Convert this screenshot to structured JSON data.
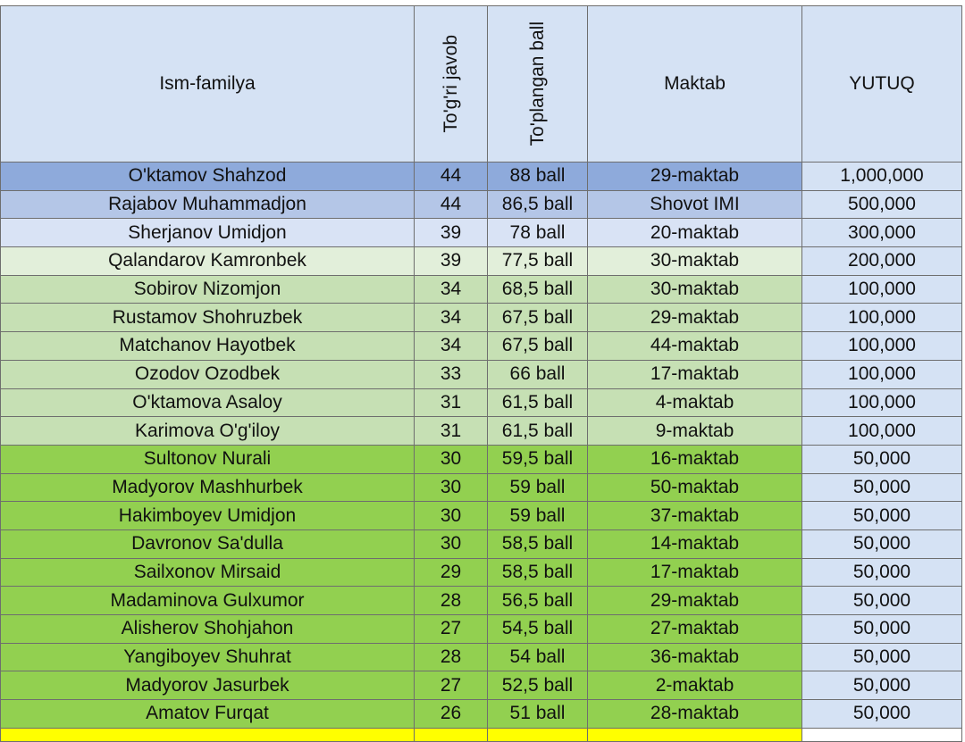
{
  "table": {
    "headers": {
      "name": "Ism-familya",
      "correct": "To'g'ri javob",
      "score": "To'plangan ball",
      "school": "Maktab",
      "prize": "YUTUQ"
    },
    "rows": [
      {
        "name": "O'ktamov Shahzod",
        "correct": "44",
        "score": "88 ball",
        "school": "29-maktab",
        "prize": "1,000,000",
        "color": "#8eaadb"
      },
      {
        "name": "Rajabov Muhammadjon",
        "correct": "44",
        "score": "86,5 ball",
        "school": "Shovot IMI",
        "prize": "500,000",
        "color": "#b4c6e7"
      },
      {
        "name": "Sherjanov Umidjon",
        "correct": "39",
        "score": "78 ball",
        "school": "20-maktab",
        "prize": "300,000",
        "color": "#d9e3f5"
      },
      {
        "name": "Qalandarov Kamronbek",
        "correct": "39",
        "score": "77,5 ball",
        "school": "30-maktab",
        "prize": "200,000",
        "color": "#e2efda"
      },
      {
        "name": "Sobirov Nizomjon",
        "correct": "34",
        "score": "68,5 ball",
        "school": "30-maktab",
        "prize": "100,000",
        "color": "#c6e0b4"
      },
      {
        "name": "Rustamov Shohruzbek",
        "correct": "34",
        "score": "67,5 ball",
        "school": "29-maktab",
        "prize": "100,000",
        "color": "#c6e0b4"
      },
      {
        "name": "Matchanov Hayotbek",
        "correct": "34",
        "score": "67,5 ball",
        "school": "44-maktab",
        "prize": "100,000",
        "color": "#c6e0b4"
      },
      {
        "name": "Ozodov Ozodbek",
        "correct": "33",
        "score": "66 ball",
        "school": "17-maktab",
        "prize": "100,000",
        "color": "#c6e0b4"
      },
      {
        "name": "O'ktamova Asaloy",
        "correct": "31",
        "score": "61,5 ball",
        "school": "4-maktab",
        "prize": "100,000",
        "color": "#c6e0b4"
      },
      {
        "name": "Karimova O'g'iloy",
        "correct": "31",
        "score": "61,5 ball",
        "school": "9-maktab",
        "prize": "100,000",
        "color": "#c6e0b4"
      },
      {
        "name": "Sultonov Nurali",
        "correct": "30",
        "score": "59,5 ball",
        "school": "16-maktab",
        "prize": "50,000",
        "color": "#92d050"
      },
      {
        "name": "Madyorov Mashhurbek",
        "correct": "30",
        "score": "59 ball",
        "school": "50-maktab",
        "prize": "50,000",
        "color": "#92d050"
      },
      {
        "name": "Hakimboyev Umidjon",
        "correct": "30",
        "score": "59 ball",
        "school": "37-maktab",
        "prize": "50,000",
        "color": "#92d050"
      },
      {
        "name": "Davronov Sa'dulla",
        "correct": "30",
        "score": "58,5 ball",
        "school": "14-maktab",
        "prize": "50,000",
        "color": "#92d050"
      },
      {
        "name": "Sailxonov Mirsaid",
        "correct": "29",
        "score": "58,5 ball",
        "school": "17-maktab",
        "prize": "50,000",
        "color": "#92d050"
      },
      {
        "name": "Madaminova Gulxumor",
        "correct": "28",
        "score": "56,5 ball",
        "school": "29-maktab",
        "prize": "50,000",
        "color": "#92d050"
      },
      {
        "name": "Alisherov Shohjahon",
        "correct": "27",
        "score": "54,5 ball",
        "school": "27-maktab",
        "prize": "50,000",
        "color": "#92d050"
      },
      {
        "name": "Yangiboyev Shuhrat",
        "correct": "28",
        "score": "54 ball",
        "school": "36-maktab",
        "prize": "50,000",
        "color": "#92d050"
      },
      {
        "name": "Madyorov Jasurbek",
        "correct": "27",
        "score": "52,5 ball",
        "school": "2-maktab",
        "prize": "50,000",
        "color": "#92d050"
      },
      {
        "name": "Amatov Furqat",
        "correct": "26",
        "score": "51 ball",
        "school": "28-maktab",
        "prize": "50,000",
        "color": "#92d050"
      }
    ],
    "cut_row_color": "#ffff00"
  }
}
